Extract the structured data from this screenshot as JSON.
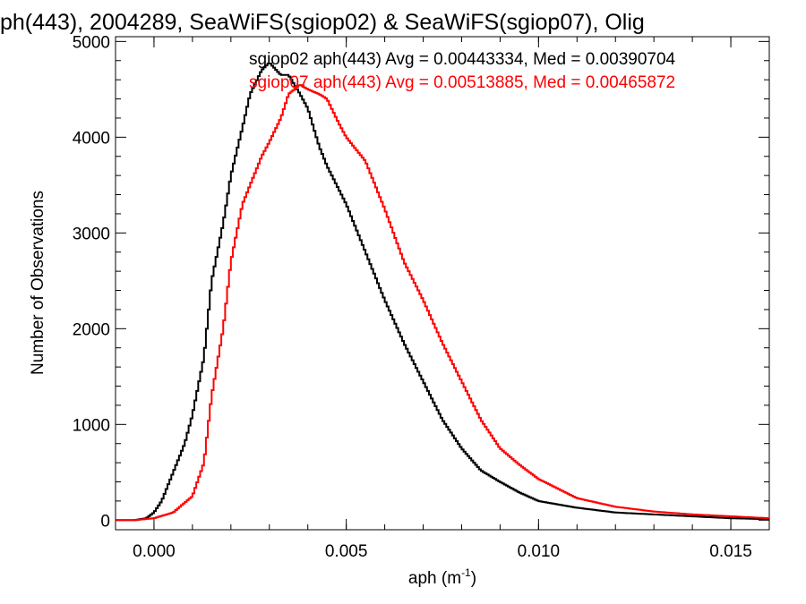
{
  "chart_data": {
    "type": "line",
    "title": "ph(443), 2004289, SeaWiFS(sgiop02) & SeaWiFS(sgiop07), Olig",
    "xlabel": "aph (m",
    "xlabel_sup": "-1",
    "xlabel_close": ")",
    "ylabel": "Number of Observations",
    "xlim": [
      -0.001,
      0.016
    ],
    "ylim": [
      -100,
      5050
    ],
    "xticks": [
      0.0,
      0.005,
      0.01,
      0.015
    ],
    "xtick_labels": [
      "0.000",
      "0.005",
      "0.010",
      "0.015"
    ],
    "yticks": [
      0,
      1000,
      2000,
      3000,
      4000,
      5000
    ],
    "ytick_labels": [
      "0",
      "1000",
      "2000",
      "3000",
      "4000",
      "5000"
    ],
    "grid": false,
    "annotations": [
      {
        "text": "sgiop02 aph(443) Avg = 0.00443334, Med = 0.00390704",
        "color": "#000000"
      },
      {
        "text": "sgiop07 aph(443) Avg = 0.00513885, Med = 0.00465872",
        "color": "#ff0000"
      }
    ],
    "series": [
      {
        "color": "#000000",
        "x": [
          -0.001,
          -0.0005,
          -0.0002,
          0.0,
          0.0002,
          0.0005,
          0.0008,
          0.001,
          0.0013,
          0.0015,
          0.0018,
          0.002,
          0.0023,
          0.0025,
          0.0028,
          0.003,
          0.0033,
          0.0035,
          0.0038,
          0.004,
          0.0043,
          0.0045,
          0.005,
          0.0055,
          0.006,
          0.0065,
          0.007,
          0.0075,
          0.008,
          0.0085,
          0.009,
          0.0095,
          0.01,
          0.011,
          0.012,
          0.013,
          0.014,
          0.015,
          0.016
        ],
        "y": [
          0,
          0,
          20,
          80,
          200,
          500,
          800,
          1100,
          1700,
          2500,
          3100,
          3600,
          4100,
          4450,
          4700,
          4780,
          4650,
          4650,
          4450,
          4300,
          3900,
          3700,
          3300,
          2800,
          2300,
          1850,
          1450,
          1050,
          750,
          520,
          400,
          290,
          200,
          130,
          80,
          60,
          40,
          20,
          10
        ]
      },
      {
        "color": "#ff0000",
        "x": [
          -0.001,
          -0.0005,
          0.0,
          0.0005,
          0.001,
          0.0013,
          0.0015,
          0.0018,
          0.002,
          0.0023,
          0.0025,
          0.0028,
          0.003,
          0.0033,
          0.0035,
          0.0038,
          0.004,
          0.0043,
          0.0045,
          0.0048,
          0.005,
          0.0055,
          0.006,
          0.0065,
          0.007,
          0.0075,
          0.008,
          0.0085,
          0.009,
          0.0095,
          0.01,
          0.011,
          0.012,
          0.013,
          0.014,
          0.015,
          0.016
        ],
        "y": [
          0,
          0,
          20,
          80,
          250,
          600,
          1300,
          2000,
          2700,
          3300,
          3500,
          3800,
          3950,
          4200,
          4450,
          4550,
          4500,
          4450,
          4400,
          4150,
          4000,
          3750,
          3250,
          2700,
          2300,
          1850,
          1450,
          1050,
          750,
          580,
          430,
          230,
          140,
          90,
          60,
          40,
          20
        ]
      }
    ]
  }
}
